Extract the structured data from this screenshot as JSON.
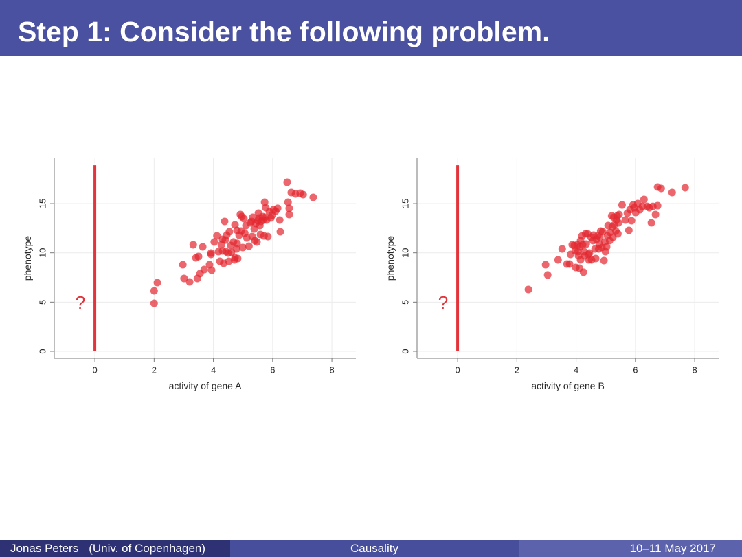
{
  "slide": {
    "title": "Step 1: Consider the following problem.",
    "colors": {
      "header": "#4a51a0",
      "footer_left": "#2e3274",
      "footer_mid": "#474e9c",
      "footer_right": "#5c62ac"
    }
  },
  "footer": {
    "author": "Jonas Peters",
    "institute": "(Univ. of Copenhagen)",
    "title": "Causality",
    "date": "10–11 May 2017"
  },
  "chart_data": [
    {
      "type": "scatter",
      "title": "",
      "xlabel": "activity of gene A",
      "ylabel": "phenotype",
      "xlim": [
        -1.37,
        8.81
      ],
      "ylim": [
        -0.7,
        19.61
      ],
      "xticks": [
        0,
        2,
        4,
        6,
        8
      ],
      "yticks": [
        0,
        5,
        10,
        15
      ],
      "grid": true,
      "marker_color": "#e3262f",
      "vertical_line": {
        "x": 0,
        "y_from": 0,
        "y_to": 18.9,
        "color": "#e3343b"
      },
      "question_mark": {
        "text": "?",
        "x": -0.49,
        "y": 4.95,
        "color": "#e3343b"
      },
      "points": [
        [
          2.0,
          4.88
        ],
        [
          2.0,
          6.14
        ],
        [
          2.11,
          6.98
        ],
        [
          2.97,
          8.79
        ],
        [
          3.01,
          7.4
        ],
        [
          3.2,
          7.05
        ],
        [
          3.32,
          10.82
        ],
        [
          3.41,
          9.49
        ],
        [
          3.5,
          9.63
        ],
        [
          3.46,
          7.4
        ],
        [
          3.55,
          7.89
        ],
        [
          3.64,
          10.61
        ],
        [
          3.69,
          8.3
        ],
        [
          3.87,
          8.79
        ],
        [
          3.92,
          9.98
        ],
        [
          3.92,
          9.84
        ],
        [
          3.94,
          8.23
        ],
        [
          4.03,
          11.1
        ],
        [
          4.12,
          11.72
        ],
        [
          4.17,
          10.12
        ],
        [
          4.22,
          9.14
        ],
        [
          4.27,
          10.82
        ],
        [
          4.31,
          11.37
        ],
        [
          4.31,
          10.19
        ],
        [
          4.35,
          8.93
        ],
        [
          4.38,
          13.19
        ],
        [
          4.4,
          11.3
        ],
        [
          4.43,
          10.12
        ],
        [
          4.45,
          11.79
        ],
        [
          4.5,
          9.98
        ],
        [
          4.52,
          9.14
        ],
        [
          4.54,
          12.14
        ],
        [
          4.59,
          10.75
        ],
        [
          4.61,
          10.05
        ],
        [
          4.68,
          11.1
        ],
        [
          4.71,
          9.28
        ],
        [
          4.73,
          9.49
        ],
        [
          4.78,
          10.4
        ],
        [
          4.8,
          10.96
        ],
        [
          4.82,
          9.42
        ],
        [
          4.87,
          11.79
        ],
        [
          4.73,
          12.84
        ],
        [
          4.8,
          12.28
        ],
        [
          4.91,
          13.89
        ],
        [
          4.94,
          12.21
        ],
        [
          4.96,
          13.68
        ],
        [
          4.99,
          10.54
        ],
        [
          5.03,
          13.47
        ],
        [
          5.06,
          12.0
        ],
        [
          5.1,
          12.77
        ],
        [
          5.13,
          11.51
        ],
        [
          5.2,
          10.68
        ],
        [
          5.24,
          13.05
        ],
        [
          5.29,
          13.19
        ],
        [
          5.31,
          11.65
        ],
        [
          5.33,
          13.61
        ],
        [
          5.38,
          12.42
        ],
        [
          5.4,
          11.24
        ],
        [
          5.43,
          12.98
        ],
        [
          5.47,
          11.1
        ],
        [
          5.5,
          13.26
        ],
        [
          5.52,
          14.03
        ],
        [
          5.54,
          13.54
        ],
        [
          5.57,
          12.77
        ],
        [
          5.59,
          11.86
        ],
        [
          5.61,
          13.19
        ],
        [
          5.66,
          13.68
        ],
        [
          5.68,
          13.33
        ],
        [
          5.71,
          11.72
        ],
        [
          5.73,
          15.14
        ],
        [
          5.75,
          13.61
        ],
        [
          5.77,
          14.58
        ],
        [
          5.8,
          13.33
        ],
        [
          5.84,
          11.65
        ],
        [
          5.89,
          14.17
        ],
        [
          5.94,
          13.54
        ],
        [
          5.98,
          13.82
        ],
        [
          6.03,
          14.38
        ],
        [
          6.1,
          14.24
        ],
        [
          6.17,
          14.52
        ],
        [
          6.24,
          13.33
        ],
        [
          6.26,
          12.14
        ],
        [
          6.49,
          17.17
        ],
        [
          6.52,
          15.14
        ],
        [
          6.56,
          14.52
        ],
        [
          6.56,
          13.89
        ],
        [
          6.63,
          16.12
        ],
        [
          6.77,
          15.98
        ],
        [
          6.93,
          16.05
        ],
        [
          7.03,
          15.91
        ],
        [
          7.37,
          15.63
        ]
      ]
    },
    {
      "type": "scatter",
      "title": "",
      "xlabel": "activity of gene B",
      "ylabel": "phenotype",
      "xlim": [
        -1.37,
        8.81
      ],
      "ylim": [
        -0.7,
        19.61
      ],
      "xticks": [
        0,
        2,
        4,
        6,
        8
      ],
      "yticks": [
        0,
        5,
        10,
        15
      ],
      "grid": true,
      "marker_color": "#e3262f",
      "vertical_line": {
        "x": 0,
        "y_from": 0,
        "y_to": 18.9,
        "color": "#e3343b"
      },
      "question_mark": {
        "text": "?",
        "x": -0.49,
        "y": 4.95,
        "color": "#e3343b"
      },
      "points": [
        [
          2.39,
          6.28
        ],
        [
          2.97,
          8.79
        ],
        [
          3.04,
          7.75
        ],
        [
          3.39,
          9.28
        ],
        [
          3.53,
          10.4
        ],
        [
          3.69,
          8.86
        ],
        [
          3.78,
          8.86
        ],
        [
          3.81,
          9.84
        ],
        [
          3.87,
          10.82
        ],
        [
          3.94,
          10.75
        ],
        [
          3.97,
          10.19
        ],
        [
          3.99,
          8.51
        ],
        [
          4.04,
          10.82
        ],
        [
          4.06,
          10.12
        ],
        [
          4.08,
          9.7
        ],
        [
          4.11,
          8.44
        ],
        [
          4.13,
          10.61
        ],
        [
          4.15,
          11.24
        ],
        [
          4.15,
          9.28
        ],
        [
          4.2,
          11.72
        ],
        [
          4.22,
          10.82
        ],
        [
          4.25,
          8.03
        ],
        [
          4.27,
          10.12
        ],
        [
          4.29,
          9.7
        ],
        [
          4.32,
          11.93
        ],
        [
          4.34,
          10.89
        ],
        [
          4.39,
          11.93
        ],
        [
          4.41,
          9.84
        ],
        [
          4.43,
          9.28
        ],
        [
          4.45,
          9.98
        ],
        [
          4.5,
          11.58
        ],
        [
          4.52,
          9.28
        ],
        [
          4.57,
          11.24
        ],
        [
          4.59,
          11.79
        ],
        [
          4.64,
          10.4
        ],
        [
          4.66,
          9.42
        ],
        [
          4.69,
          11.37
        ],
        [
          4.73,
          11.72
        ],
        [
          4.76,
          10.4
        ],
        [
          4.78,
          10.89
        ],
        [
          4.8,
          11.58
        ],
        [
          4.83,
          12.21
        ],
        [
          4.87,
          10.54
        ],
        [
          4.9,
          12.14
        ],
        [
          4.94,
          9.21
        ],
        [
          4.97,
          11.1
        ],
        [
          4.99,
          10.12
        ],
        [
          5.03,
          10.61
        ],
        [
          5.06,
          11.72
        ],
        [
          5.08,
          12.77
        ],
        [
          5.13,
          11.24
        ],
        [
          5.15,
          12.07
        ],
        [
          5.2,
          13.75
        ],
        [
          5.22,
          12.63
        ],
        [
          5.24,
          11.58
        ],
        [
          5.27,
          13.61
        ],
        [
          5.29,
          12.84
        ],
        [
          5.34,
          12.21
        ],
        [
          5.36,
          13.33
        ],
        [
          5.38,
          13.75
        ],
        [
          5.41,
          11.93
        ],
        [
          5.43,
          13.05
        ],
        [
          5.45,
          13.89
        ],
        [
          5.55,
          14.86
        ],
        [
          5.66,
          13.33
        ],
        [
          5.73,
          14.03
        ],
        [
          5.78,
          12.28
        ],
        [
          5.82,
          14.38
        ],
        [
          5.87,
          13.26
        ],
        [
          5.92,
          14.86
        ],
        [
          5.96,
          14.58
        ],
        [
          6.01,
          14.1
        ],
        [
          6.08,
          15.0
        ],
        [
          6.15,
          14.38
        ],
        [
          6.24,
          14.72
        ],
        [
          6.29,
          15.42
        ],
        [
          6.4,
          14.72
        ],
        [
          6.47,
          14.58
        ],
        [
          6.54,
          13.05
        ],
        [
          6.59,
          14.72
        ],
        [
          6.68,
          13.89
        ],
        [
          6.75,
          14.79
        ],
        [
          6.75,
          16.68
        ],
        [
          6.87,
          16.54
        ],
        [
          7.24,
          16.12
        ],
        [
          7.68,
          16.61
        ]
      ]
    }
  ]
}
